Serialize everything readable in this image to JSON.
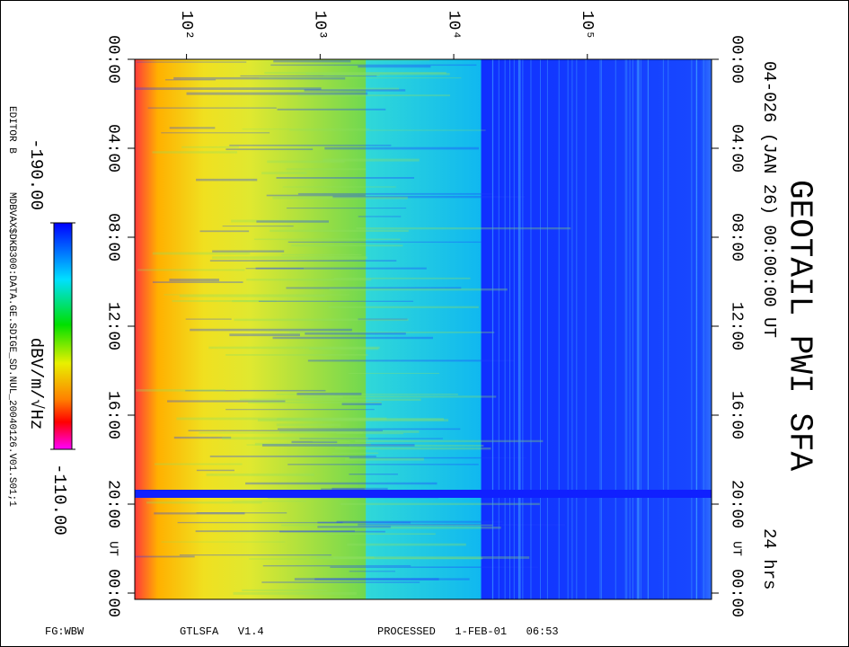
{
  "chart_data": {
    "type": "spectrogram",
    "title": "GEOTAIL PWI SFA",
    "subtitle": "04-026 (JAN 26) 00:00:00 UT",
    "duration_label": "24 hrs",
    "x_log": true,
    "xlim": [
      41,
      850000
    ],
    "xticks": [
      {
        "value": 100,
        "label": "10²"
      },
      {
        "value": 1000,
        "label": "10³"
      },
      {
        "value": 10000,
        "label": "10⁴"
      },
      {
        "value": 100000,
        "label": "10⁵"
      }
    ],
    "ylim": [
      0,
      24
    ],
    "yticks": [
      {
        "value": 0,
        "label": "00:00"
      },
      {
        "value": 4,
        "label": "04:00"
      },
      {
        "value": 8,
        "label": "08:00"
      },
      {
        "value": 12,
        "label": "12:00"
      },
      {
        "value": 16,
        "label": "16:00"
      },
      {
        "value": 20,
        "label": "20:00"
      },
      {
        "value": 24,
        "label": "00:00"
      }
    ],
    "y_annotation": "UT",
    "colorbar_label": "dBV/m/√Hz",
    "clim": [
      -190,
      -110
    ],
    "cticks": [
      {
        "value": -190,
        "label": "-190.00"
      },
      {
        "value": -110,
        "label": "-110.00"
      }
    ],
    "editor": "EDITOR B",
    "source": "MDBVAX$DKB300:DATA.GE.SDIGE_SD.NUL_20040126.V01.S01;1",
    "footer": [
      "FG:WBW",
      "GTLSFA   V1.4",
      "PROCESSED   1-FEB-01   06:53"
    ]
  }
}
